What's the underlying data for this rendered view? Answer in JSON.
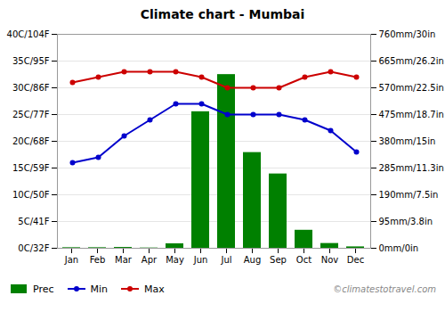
{
  "chart_data": {
    "type": "bar",
    "title": "Climate chart - Mumbai",
    "categories": [
      "Jan",
      "Feb",
      "Mar",
      "Apr",
      "May",
      "Jun",
      "Jul",
      "Aug",
      "Sep",
      "Oct",
      "Nov",
      "Dec"
    ],
    "series": [
      {
        "name": "Prec",
        "type": "bar",
        "axis": "y2",
        "color": "#008000",
        "values": [
          2,
          2,
          3,
          1,
          16,
          485,
          617,
          340,
          264,
          64,
          17,
          5
        ]
      },
      {
        "name": "Min",
        "type": "line",
        "color": "#0000cc",
        "marker": "circle",
        "line_style": "solid",
        "values": [
          16,
          17,
          21,
          24,
          27,
          27,
          25,
          25,
          25,
          24,
          22,
          18
        ]
      },
      {
        "name": "Max",
        "type": "line",
        "color": "#cc0000",
        "marker": "circle",
        "line_style": "solid",
        "values": [
          31,
          32,
          33,
          33,
          33,
          32,
          30,
          30,
          30,
          32,
          33,
          32
        ]
      }
    ],
    "ylim": [
      0,
      40
    ],
    "yticks": [
      {
        "value": 0,
        "label": "0C/32F"
      },
      {
        "value": 5,
        "label": "5C/41F"
      },
      {
        "value": 10,
        "label": "10C/50F"
      },
      {
        "value": 15,
        "label": "15C/59F"
      },
      {
        "value": 20,
        "label": "20C/68F"
      },
      {
        "value": 25,
        "label": "25C/77F"
      },
      {
        "value": 30,
        "label": "30C/86F"
      },
      {
        "value": 35,
        "label": "35C/95F"
      },
      {
        "value": 40,
        "label": "40C/104F"
      }
    ],
    "y2lim": [
      0,
      760
    ],
    "y2ticks": [
      {
        "value": 0,
        "label": "0mm/0in"
      },
      {
        "value": 95,
        "label": "95mm/3.8in"
      },
      {
        "value": 190,
        "label": "190mm/7.5in"
      },
      {
        "value": 285,
        "label": "285mm/11.3in"
      },
      {
        "value": 380,
        "label": "380mm/15in"
      },
      {
        "value": 475,
        "label": "475mm/18.7in"
      },
      {
        "value": 570,
        "label": "570mm/22.5in"
      },
      {
        "value": 665,
        "label": "665mm/26.2in"
      },
      {
        "value": 760,
        "label": "760mm/30in"
      }
    ],
    "grid": true,
    "legend": "lower left",
    "annotations": [
      "©climatestotravel.com"
    ]
  }
}
